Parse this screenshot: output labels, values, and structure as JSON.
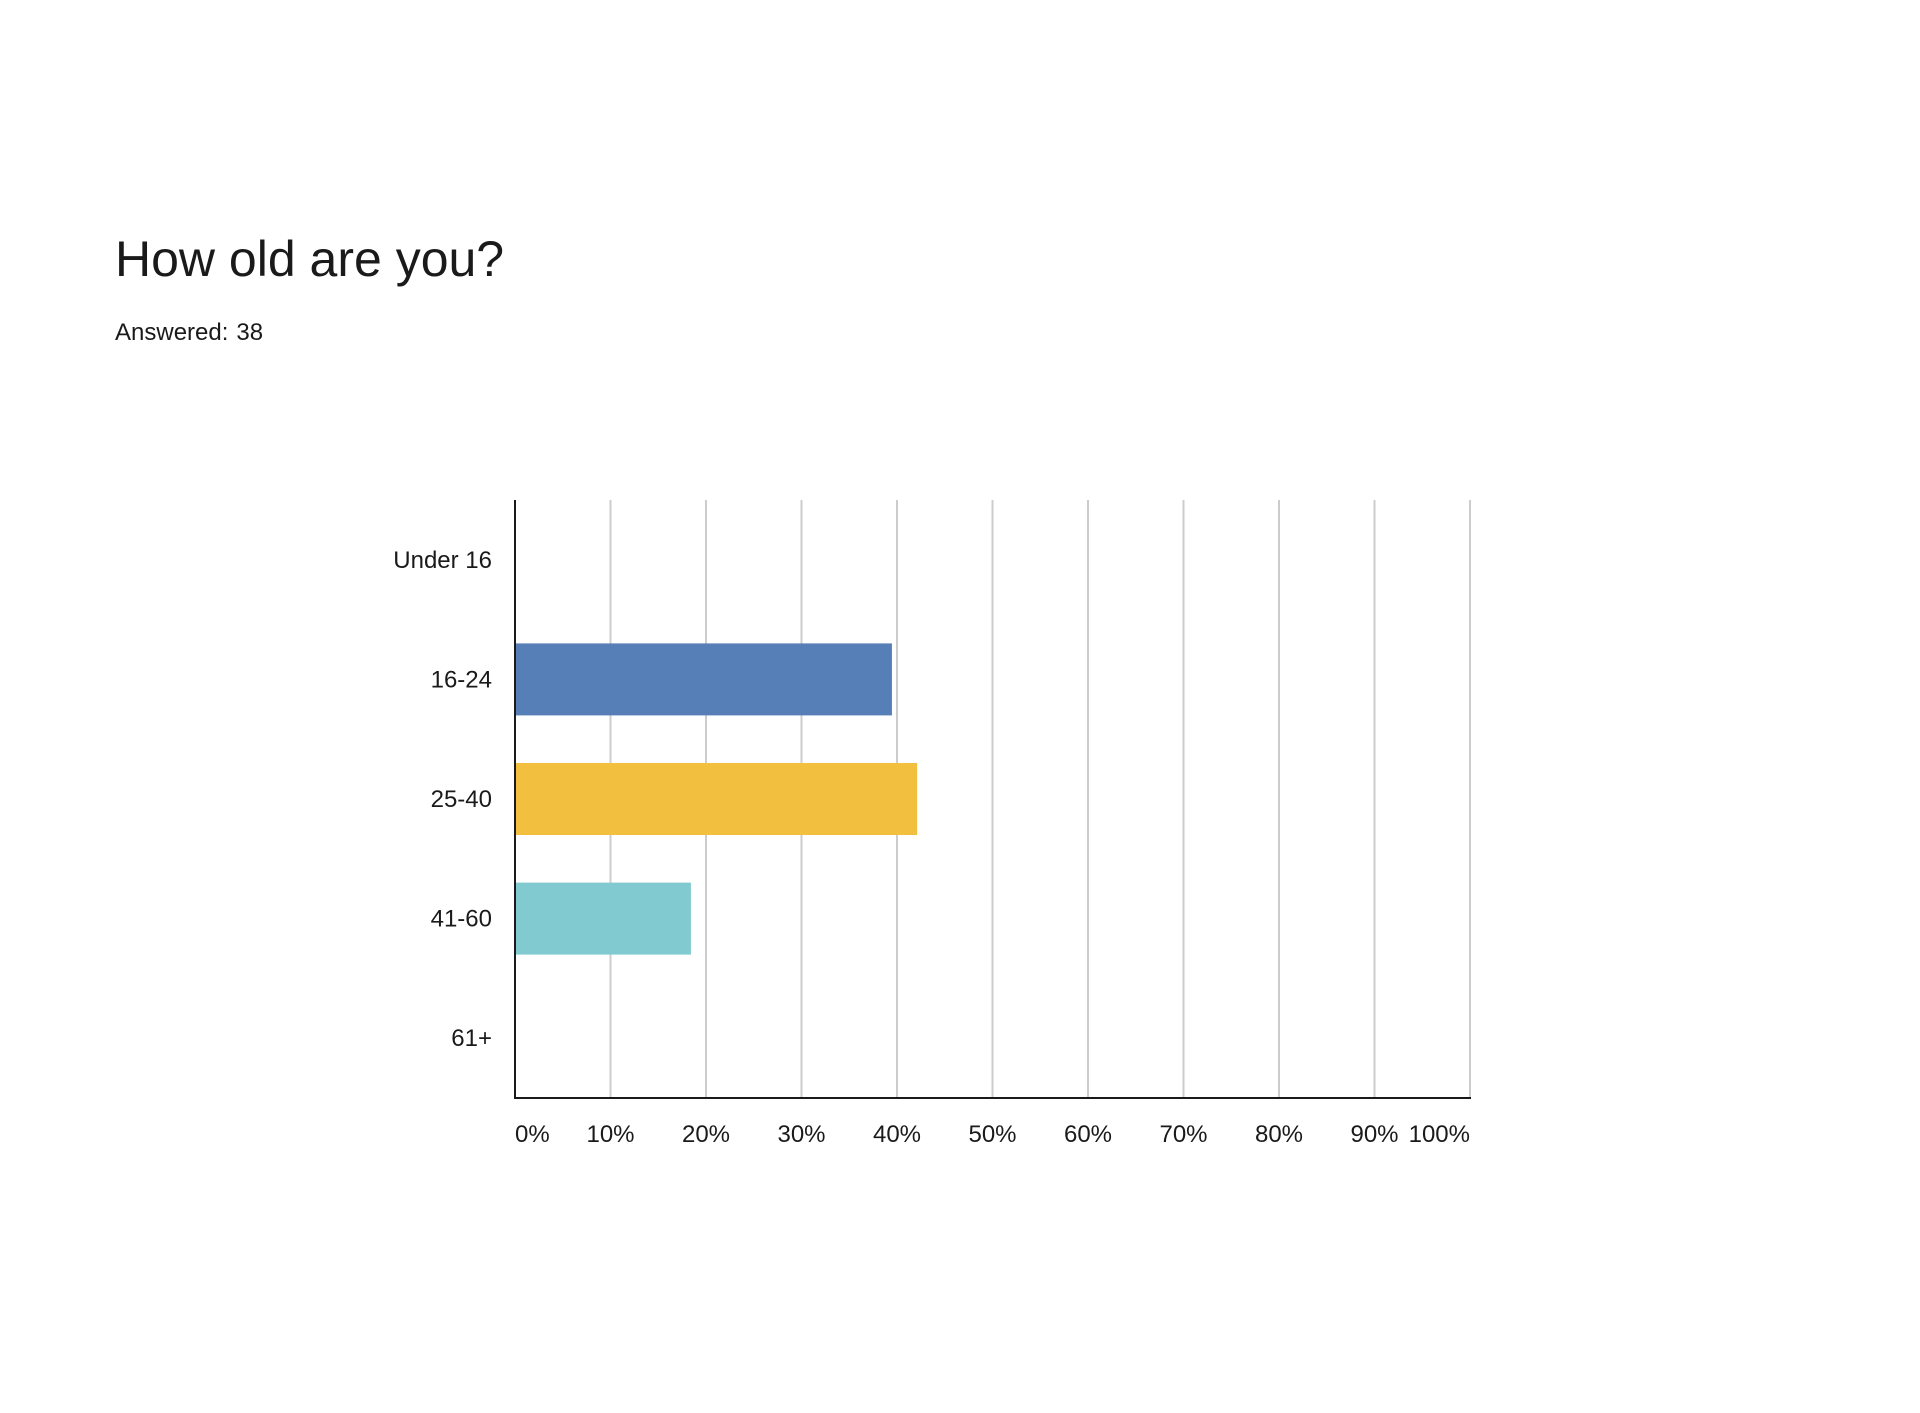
{
  "question": {
    "title": "How old are you?",
    "answered_label": "Answered:",
    "answered_count": "38"
  },
  "chart_data": {
    "type": "bar",
    "orientation": "horizontal",
    "categories": [
      "Under 16",
      "16-24",
      "25-40",
      "41-60",
      "61+"
    ],
    "values": [
      0,
      39.47,
      42.11,
      18.42,
      0
    ],
    "colors": [
      "#567fb8",
      "#567fb8",
      "#f2bf3e",
      "#80cad0",
      "#567fb8"
    ],
    "xlim": [
      0,
      100
    ],
    "x_ticks": [
      0,
      10,
      20,
      30,
      40,
      50,
      60,
      70,
      80,
      90,
      100
    ],
    "x_tick_labels": [
      "0%",
      "10%",
      "20%",
      "30%",
      "40%",
      "50%",
      "60%",
      "70%",
      "80%",
      "90%",
      "100%"
    ],
    "grid": true,
    "title": "",
    "xlabel": "",
    "ylabel": "",
    "colors_meta": {
      "gridline": "#cccccc",
      "axis": "#1a1a1a"
    }
  }
}
